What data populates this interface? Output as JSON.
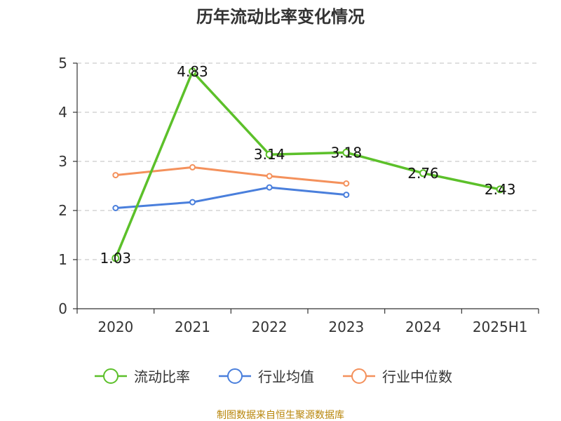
{
  "chart_data": {
    "type": "line",
    "title": "历年流动比率变化情况",
    "categories": [
      "2020",
      "2021",
      "2022",
      "2023",
      "2024",
      "2025H1"
    ],
    "ylim": [
      0,
      5
    ],
    "yticks": [
      0,
      1,
      2,
      3,
      4,
      5
    ],
    "grid": true,
    "legend_position": "bottom",
    "series": [
      {
        "name": "流动比率",
        "color": "#5cc02a",
        "values": [
          1.03,
          4.83,
          3.14,
          3.18,
          2.76,
          2.43
        ],
        "labels": true
      },
      {
        "name": "行业均值",
        "color": "#4a7fdc",
        "values": [
          2.05,
          2.17,
          2.47,
          2.32,
          null,
          null
        ],
        "labels": false
      },
      {
        "name": "行业中位数",
        "color": "#f4915c",
        "values": [
          2.72,
          2.88,
          2.7,
          2.55,
          null,
          null
        ],
        "labels": false
      }
    ]
  },
  "source_text": "制图数据来自恒生聚源数据库"
}
